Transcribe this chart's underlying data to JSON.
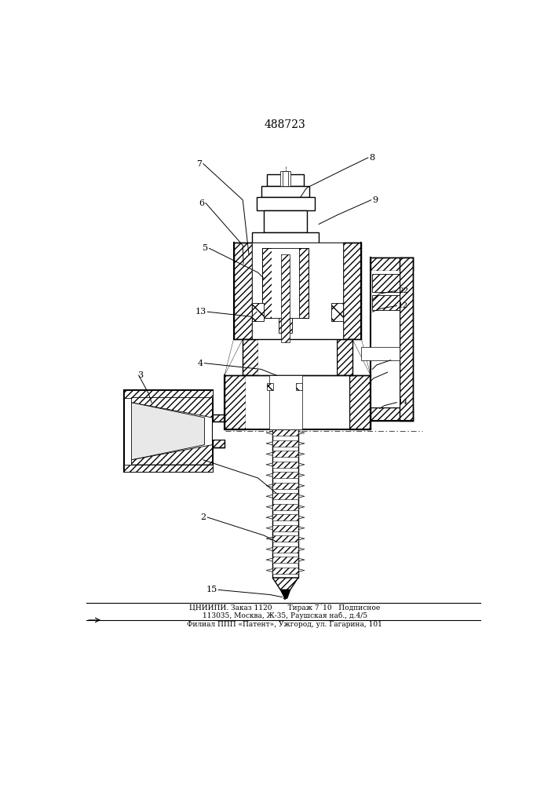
{
  "title": "488723",
  "footer_line1": "ЦНИИПИ. Заказ 1120       Тираж 7´10   Подписное",
  "footer_line2": "113035, Москва, Ж-35, Раушская наб., д.4/5",
  "footer_line3": "Филиал ППП «Патент», Ужгород, ул. Гагарина, 101",
  "bg_color": "#ffffff",
  "line_color": "#000000",
  "fig_width": 7.07,
  "fig_height": 10.0,
  "dpi": 100
}
